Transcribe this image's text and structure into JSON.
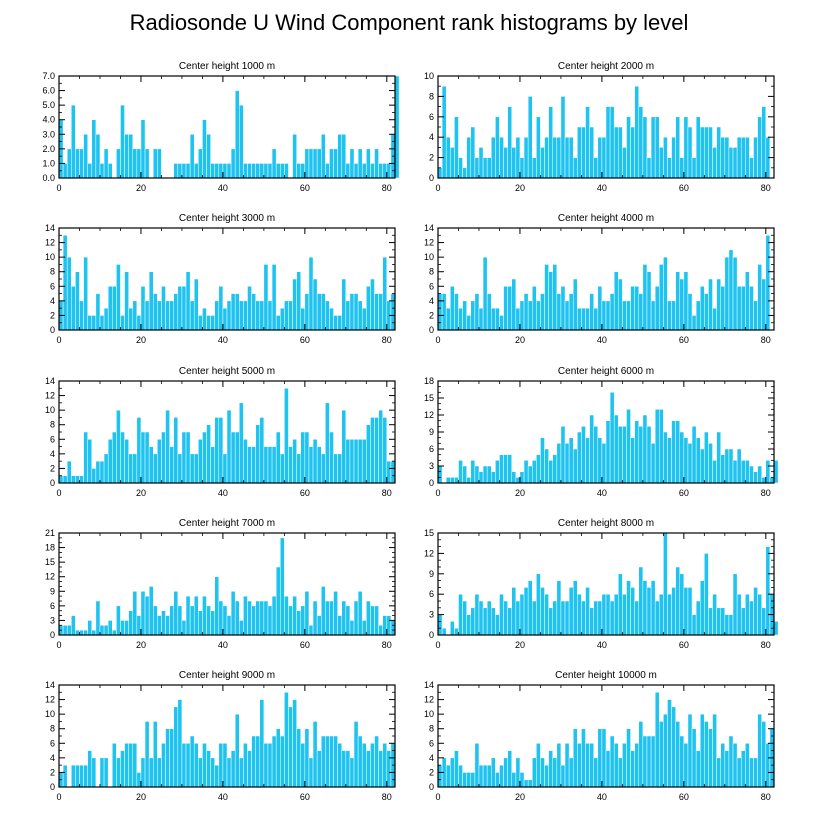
{
  "title": "Radiosonde U Wind Component rank histograms by level",
  "colors": {
    "bar": "#1ec3f0",
    "bar_edge": "#ffffff",
    "axis": "#000000"
  },
  "chart_data": [
    {
      "type": "bar",
      "title": "Center height 1000 m",
      "xlim": [
        0,
        82
      ],
      "ylim": [
        0,
        7
      ],
      "xticks": [
        0,
        20,
        40,
        60,
        80
      ],
      "yticks": [
        0,
        1,
        2,
        3,
        4,
        5,
        6,
        7
      ],
      "ytick_labels": [
        "0.0",
        "1.0",
        "2.0",
        "3.0",
        "4.0",
        "5.0",
        "6.0",
        "7.0"
      ],
      "values": [
        4,
        1,
        2,
        5,
        2,
        2,
        3,
        1,
        4,
        3,
        1,
        2,
        1,
        0,
        2,
        5,
        3,
        3,
        2,
        2,
        4,
        2,
        0,
        2,
        2,
        0,
        0,
        0,
        1,
        1,
        1,
        1,
        3,
        1,
        2,
        4,
        3,
        1,
        1,
        1,
        1,
        1,
        2,
        6,
        5,
        1,
        1,
        1,
        1,
        1,
        1,
        1,
        2,
        1,
        1,
        1,
        0,
        3,
        1,
        1,
        2,
        2,
        2,
        2,
        3,
        1,
        2,
        2,
        3,
        3,
        1,
        2,
        1,
        2,
        1,
        2,
        1,
        2,
        1,
        1,
        1,
        3,
        7
      ]
    },
    {
      "type": "bar",
      "title": "Center height 2000 m",
      "xlim": [
        0,
        82
      ],
      "ylim": [
        0,
        10
      ],
      "xticks": [
        0,
        20,
        40,
        60,
        80
      ],
      "yticks": [
        0,
        2,
        4,
        6,
        8,
        10
      ],
      "ytick_labels": [
        "0",
        "2",
        "4",
        "6",
        "8",
        "10"
      ],
      "values": [
        1,
        9,
        4,
        3,
        6,
        2,
        1,
        4,
        5,
        2,
        3,
        2,
        2,
        4,
        6,
        4,
        3,
        7,
        3,
        4,
        2,
        4,
        8,
        2,
        6,
        3,
        4,
        7,
        4,
        4,
        8,
        4,
        4,
        2,
        5,
        5,
        7,
        5,
        2,
        4,
        4,
        7,
        7,
        5,
        5,
        3,
        6,
        5,
        9,
        7,
        6,
        2,
        6,
        6,
        3,
        4,
        2,
        4,
        6,
        2,
        6,
        5,
        2,
        6,
        5,
        5,
        5,
        3,
        5,
        4,
        4,
        3,
        3,
        4,
        4,
        4,
        2,
        4,
        6,
        7,
        4,
        0,
        0
      ]
    },
    {
      "type": "bar",
      "title": "Center height 3000 m",
      "xlim": [
        0,
        82
      ],
      "ylim": [
        0,
        14
      ],
      "xticks": [
        0,
        20,
        40,
        60,
        80
      ],
      "yticks": [
        0,
        2,
        4,
        6,
        8,
        10,
        12,
        14
      ],
      "ytick_labels": [
        "0",
        "2",
        "4",
        "6",
        "8",
        "10",
        "12",
        "14"
      ],
      "values": [
        4,
        13,
        10,
        6,
        8,
        4,
        10,
        2,
        2,
        5,
        2,
        3,
        6,
        6,
        9,
        2,
        8,
        3,
        4,
        2,
        6,
        4,
        8,
        5,
        4,
        6,
        4,
        4,
        5,
        6,
        6,
        8,
        4,
        7,
        2,
        3,
        2,
        2,
        4,
        6,
        3,
        4,
        5,
        5,
        4,
        4,
        6,
        5,
        4,
        4,
        9,
        4,
        9,
        2,
        3,
        4,
        4,
        7,
        8,
        3,
        5,
        10,
        7,
        5,
        5,
        4,
        3,
        2,
        2,
        7,
        4,
        5,
        5,
        4,
        3,
        6,
        7,
        5,
        5,
        10,
        4,
        5,
        0
      ]
    },
    {
      "type": "bar",
      "title": "Center height 4000 m",
      "xlim": [
        0,
        82
      ],
      "ylim": [
        0,
        14
      ],
      "xticks": [
        0,
        20,
        40,
        60,
        80
      ],
      "yticks": [
        0,
        2,
        4,
        6,
        8,
        10,
        12,
        14
      ],
      "ytick_labels": [
        "0",
        "2",
        "4",
        "6",
        "8",
        "10",
        "12",
        "14"
      ],
      "values": [
        5,
        5,
        3,
        6,
        5,
        3,
        4,
        2,
        4,
        5,
        3,
        10,
        5,
        3,
        3,
        2,
        6,
        6,
        7,
        3,
        4,
        5,
        4,
        6,
        4,
        5,
        9,
        8,
        9,
        5,
        6,
        4,
        5,
        7,
        3,
        3,
        3,
        5,
        3,
        6,
        4,
        4,
        5,
        8,
        7,
        4,
        4,
        6,
        6,
        5,
        9,
        8,
        4,
        6,
        9,
        10,
        4,
        4,
        8,
        7,
        8,
        5,
        2,
        4,
        6,
        5,
        7,
        3,
        7,
        6,
        10,
        11,
        10,
        6,
        6,
        8,
        6,
        4,
        9,
        7,
        13,
        0,
        0
      ]
    },
    {
      "type": "bar",
      "title": "Center height 5000 m",
      "xlim": [
        0,
        82
      ],
      "ylim": [
        0,
        14
      ],
      "xticks": [
        0,
        20,
        40,
        60,
        80
      ],
      "yticks": [
        0,
        2,
        4,
        6,
        8,
        10,
        12,
        14
      ],
      "ytick_labels": [
        "0",
        "2",
        "4",
        "6",
        "8",
        "10",
        "12",
        "14"
      ],
      "values": [
        1,
        1,
        3,
        1,
        1,
        1,
        7,
        6,
        2,
        3,
        3,
        4,
        6,
        7,
        10,
        7,
        6,
        4,
        4,
        9,
        7,
        7,
        5,
        4,
        6,
        7,
        10,
        5,
        9,
        4,
        7,
        7,
        4,
        4,
        6,
        7,
        8,
        5,
        9,
        9,
        4,
        10,
        7,
        7,
        11,
        6,
        5,
        5,
        8,
        9,
        5,
        5,
        5,
        7,
        4,
        13,
        5,
        6,
        4,
        7,
        7,
        5,
        6,
        5,
        4,
        11,
        7,
        4,
        4,
        10,
        6,
        6,
        6,
        6,
        6,
        8,
        9,
        9,
        10,
        9,
        3,
        3,
        0
      ]
    },
    {
      "type": "bar",
      "title": "Center height 6000 m",
      "xlim": [
        0,
        82
      ],
      "ylim": [
        0,
        18
      ],
      "xticks": [
        0,
        20,
        40,
        60,
        80
      ],
      "yticks": [
        0,
        3,
        6,
        9,
        12,
        15,
        18
      ],
      "ytick_labels": [
        "0",
        "3",
        "6",
        "9",
        "12",
        "15",
        "18"
      ],
      "values": [
        3,
        0,
        1,
        1,
        1,
        4,
        3,
        1,
        4,
        3,
        2,
        3,
        3,
        2,
        4,
        5,
        5,
        5,
        2,
        1,
        2,
        4,
        3,
        4,
        5,
        8,
        6,
        4,
        5,
        7,
        10,
        7,
        8,
        6,
        9,
        10,
        8,
        12,
        10,
        8,
        7,
        11,
        16,
        12,
        10,
        10,
        13,
        8,
        11,
        10,
        12,
        10,
        7,
        13,
        13,
        9,
        8,
        11,
        11,
        9,
        8,
        7,
        10,
        8,
        6,
        9,
        7,
        4,
        9,
        5,
        6,
        6,
        4,
        6,
        4,
        4,
        3,
        2,
        3,
        1,
        4,
        1,
        4
      ]
    },
    {
      "type": "bar",
      "title": "Center height 7000 m",
      "xlim": [
        0,
        82
      ],
      "ylim": [
        0,
        21
      ],
      "xticks": [
        0,
        20,
        40,
        60,
        80
      ],
      "yticks": [
        0,
        3,
        6,
        9,
        12,
        15,
        18,
        21
      ],
      "ytick_labels": [
        "0",
        "3",
        "6",
        "9",
        "12",
        "15",
        "18",
        "21"
      ],
      "values": [
        2,
        2,
        2,
        4,
        1,
        1,
        1,
        3,
        1,
        7,
        2,
        2,
        3,
        1,
        6,
        3,
        3,
        5,
        9,
        4,
        9,
        8,
        10,
        6,
        4,
        5,
        4,
        6,
        9,
        6,
        3,
        8,
        6,
        8,
        5,
        8,
        6,
        5,
        12,
        7,
        6,
        4,
        9,
        7,
        3,
        8,
        7,
        6,
        7,
        7,
        7,
        6,
        8,
        14,
        20,
        8,
        6,
        8,
        5,
        6,
        9,
        2,
        7,
        4,
        10,
        7,
        7,
        9,
        4,
        7,
        6,
        3,
        7,
        9,
        3,
        7,
        6,
        6,
        2,
        4,
        4,
        3,
        0
      ]
    },
    {
      "type": "bar",
      "title": "Center height 8000 m",
      "xlim": [
        0,
        82
      ],
      "ylim": [
        0,
        15
      ],
      "xticks": [
        0,
        20,
        40,
        60,
        80
      ],
      "yticks": [
        0,
        3,
        6,
        9,
        12,
        15
      ],
      "ytick_labels": [
        "0",
        "3",
        "6",
        "9",
        "12",
        "15"
      ],
      "values": [
        3,
        1,
        0,
        2,
        1,
        6,
        5,
        3,
        4,
        6,
        5,
        4,
        5,
        4,
        3,
        6,
        5,
        4,
        7,
        5,
        6,
        7,
        8,
        5,
        9,
        7,
        6,
        4,
        5,
        8,
        5,
        5,
        7,
        8,
        6,
        5,
        7,
        4,
        5,
        5,
        6,
        6,
        5,
        6,
        9,
        6,
        8,
        7,
        5,
        10,
        8,
        7,
        8,
        5,
        6,
        15,
        6,
        7,
        10,
        9,
        7,
        7,
        3,
        5,
        8,
        12,
        4,
        6,
        4,
        4,
        3,
        3,
        9,
        6,
        4,
        6,
        5,
        7,
        6,
        4,
        13,
        6,
        2
      ]
    },
    {
      "type": "bar",
      "title": "Center height 9000 m",
      "xlim": [
        0,
        82
      ],
      "ylim": [
        0,
        14
      ],
      "xticks": [
        0,
        20,
        40,
        60,
        80
      ],
      "yticks": [
        0,
        2,
        4,
        6,
        8,
        10,
        12,
        14
      ],
      "ytick_labels": [
        "0",
        "2",
        "4",
        "6",
        "8",
        "10",
        "12",
        "14"
      ],
      "values": [
        2,
        3,
        0,
        3,
        3,
        3,
        3,
        5,
        4,
        0,
        4,
        4,
        0,
        6,
        4,
        5,
        6,
        6,
        6,
        2,
        4,
        9,
        4,
        9,
        4,
        6,
        8,
        8,
        11,
        12,
        6,
        6,
        7,
        6,
        4,
        6,
        5,
        4,
        3,
        6,
        6,
        4,
        5,
        10,
        4,
        6,
        5,
        7,
        7,
        12,
        6,
        6,
        7,
        8,
        7,
        13,
        11,
        12,
        8,
        6,
        8,
        4,
        9,
        5,
        7,
        7,
        7,
        7,
        6,
        5,
        5,
        4,
        9,
        7,
        6,
        5,
        6,
        7,
        5,
        6,
        5,
        6,
        0
      ]
    },
    {
      "type": "bar",
      "title": "Center height 10000 m",
      "xlim": [
        0,
        82
      ],
      "ylim": [
        0,
        14
      ],
      "xticks": [
        0,
        20,
        40,
        60,
        80
      ],
      "yticks": [
        0,
        2,
        4,
        6,
        8,
        10,
        12,
        14
      ],
      "ytick_labels": [
        "0",
        "2",
        "4",
        "6",
        "8",
        "10",
        "12",
        "14"
      ],
      "values": [
        3,
        4,
        3,
        4,
        5,
        3,
        2,
        2,
        2,
        6,
        3,
        3,
        3,
        4,
        2,
        3,
        4,
        5,
        2,
        4,
        2,
        1,
        1,
        4,
        6,
        4,
        3,
        5,
        4,
        6,
        3,
        6,
        4,
        8,
        6,
        8,
        6,
        6,
        4,
        8,
        8,
        5,
        7,
        6,
        4,
        6,
        8,
        5,
        6,
        9,
        7,
        7,
        7,
        13,
        9,
        10,
        12,
        11,
        9,
        7,
        6,
        10,
        8,
        5,
        10,
        9,
        8,
        10,
        4,
        6,
        5,
        7,
        6,
        4,
        5,
        6,
        4,
        4,
        10,
        9,
        6,
        8,
        0
      ]
    }
  ]
}
